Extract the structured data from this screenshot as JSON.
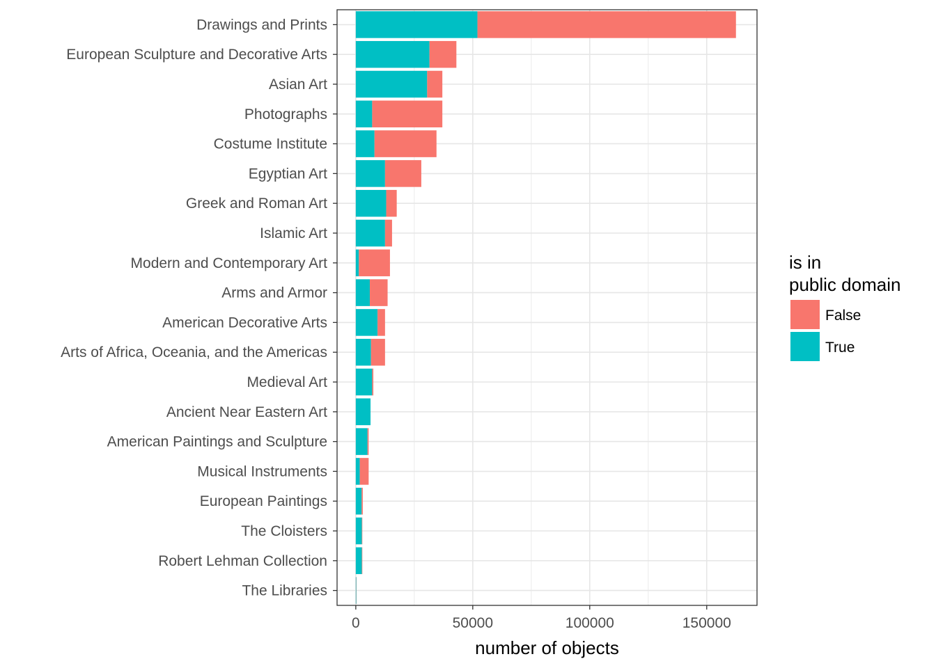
{
  "chart_data": {
    "type": "bar",
    "orientation": "horizontal",
    "stacked": true,
    "categories": [
      "Drawings and Prints",
      "European Sculpture and Decorative Arts",
      "Asian Art",
      "Photographs",
      "Costume Institute",
      "Egyptian Art",
      "Greek and Roman Art",
      "Islamic Art",
      "Modern and Contemporary Art",
      "Arms and Armor",
      "American Decorative Arts",
      "Arts of Africa, Oceania, and the Americas",
      "Medieval Art",
      "Ancient Near Eastern Art",
      "American Paintings and Sculpture",
      "Musical Instruments",
      "European Paintings",
      "The Cloisters",
      "Robert Lehman Collection",
      "The Libraries"
    ],
    "series": [
      {
        "name": "True",
        "color": "#00bfc4",
        "values": [
          52000,
          31500,
          30500,
          7000,
          8000,
          12500,
          13000,
          12500,
          1300,
          6000,
          9300,
          6500,
          7000,
          6300,
          5000,
          1700,
          2500,
          2600,
          2600,
          200
        ]
      },
      {
        "name": "False",
        "color": "#f8766d",
        "values": [
          110500,
          11500,
          6500,
          30000,
          26500,
          15500,
          4500,
          3000,
          13300,
          7600,
          3200,
          6000,
          500,
          0,
          500,
          3800,
          500,
          200,
          200,
          100
        ]
      }
    ],
    "xlabel": "number of objects",
    "ylabel": "",
    "xlim": [
      -8000,
      171500
    ],
    "xticks": [
      0,
      50000,
      100000,
      150000
    ],
    "xtick_labels": [
      "0",
      "50000",
      "100000",
      "150000"
    ],
    "grid": true,
    "legend": {
      "title_lines": [
        "is in",
        "public domain"
      ],
      "placement": "right",
      "entries": [
        {
          "label": "False",
          "color": "#f8766d"
        },
        {
          "label": "True",
          "color": "#00bfc4"
        }
      ]
    }
  }
}
